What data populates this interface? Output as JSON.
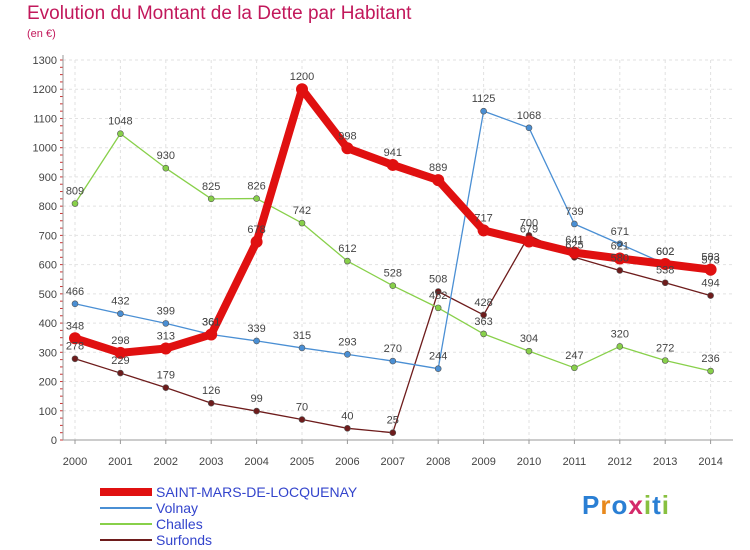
{
  "title": "Evolution du Montant de la Dette par Habitant",
  "unit": "(en €)",
  "logo": "Proxiti",
  "chart_data": {
    "type": "line",
    "x": [
      "2000",
      "2001",
      "2002",
      "2003",
      "2004",
      "2005",
      "2006",
      "2007",
      "2008",
      "2009",
      "2010",
      "2011",
      "2012",
      "2013",
      "2014"
    ],
    "ylim": [
      0,
      1300
    ],
    "yticks": [
      0,
      100,
      200,
      300,
      400,
      500,
      600,
      700,
      800,
      900,
      1000,
      1100,
      1200,
      1300
    ],
    "grid": true,
    "legend_placement": "bottom-left",
    "series": [
      {
        "name": "SAINT-MARS-DE-LOCQUENAY",
        "color": "#e01010",
        "values": [
          348,
          298,
          313,
          361,
          678,
          1200,
          998,
          941,
          889,
          717,
          679,
          641,
          621,
          602,
          583
        ]
      },
      {
        "name": "Volnay",
        "color": "#4a8fd4",
        "values": [
          466,
          432,
          399,
          361,
          339,
          315,
          293,
          270,
          244,
          1125,
          1068,
          739,
          671,
          602,
          573
        ]
      },
      {
        "name": "Challes",
        "color": "#88d04a",
        "values": [
          809,
          1048,
          930,
          825,
          826,
          742,
          612,
          528,
          452,
          363,
          304,
          247,
          320,
          272,
          236
        ]
      },
      {
        "name": "Surfonds",
        "color": "#6e1c1c",
        "values": [
          278,
          229,
          179,
          126,
          99,
          70,
          40,
          25,
          508,
          428,
          700,
          625,
          580,
          538,
          494
        ]
      }
    ]
  }
}
